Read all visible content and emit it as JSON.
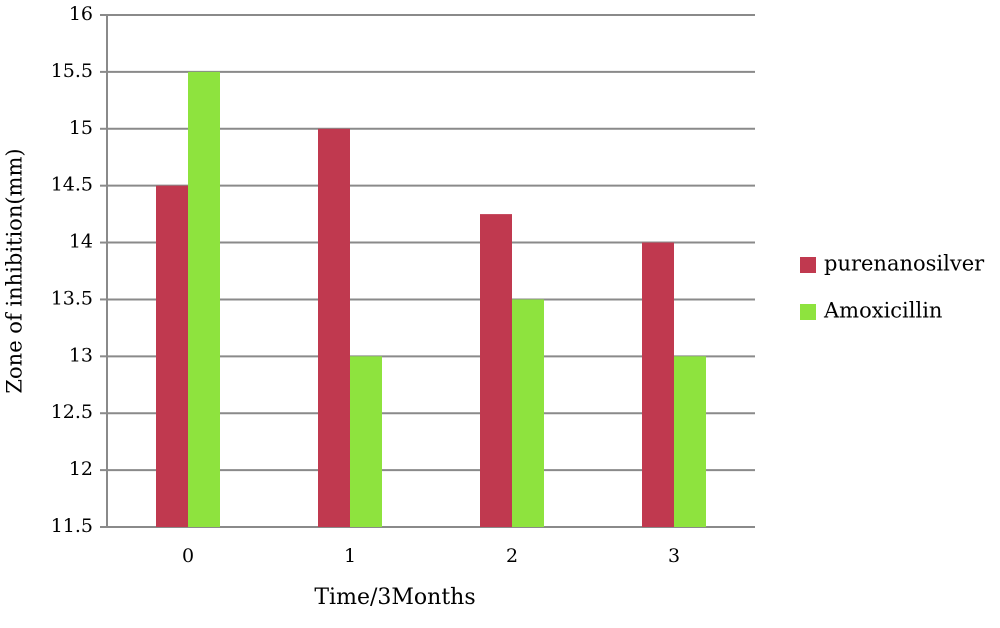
{
  "chart_data": {
    "type": "bar",
    "xlabel": "Time/3Months",
    "ylabel": "Zone of inhibition(mm)",
    "categories": [
      "0",
      "1",
      "2",
      "3"
    ],
    "series": [
      {
        "name": "purenanosilver",
        "color": "#c0394f",
        "values": [
          14.5,
          15,
          14.25,
          14
        ]
      },
      {
        "name": "Amoxicillin",
        "color": "#8ee33e",
        "values": [
          15.5,
          13,
          13.5,
          13
        ]
      }
    ],
    "ylim": [
      11.5,
      16
    ],
    "yticks": [
      11.5,
      12,
      12.5,
      13,
      13.5,
      14,
      14.5,
      15,
      15.5,
      16
    ],
    "grid": true,
    "legend": "right"
  }
}
